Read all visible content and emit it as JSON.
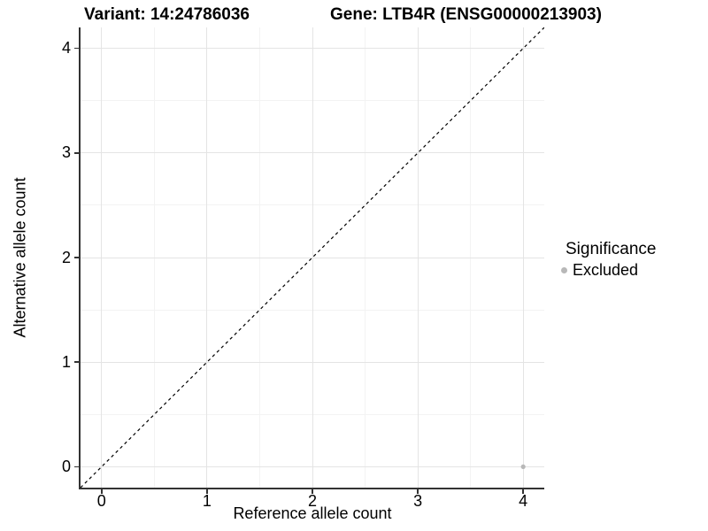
{
  "chart_data": {
    "type": "scatter",
    "title_variant": "Variant: 14:24786036",
    "title_gene": "Gene: LTB4R (ENSG00000213903)",
    "xlabel": "Reference allele count",
    "ylabel": "Alternative allele count",
    "xlim": [
      -0.2,
      4.2
    ],
    "ylim": [
      -0.2,
      4.2
    ],
    "x_ticks": [
      0,
      1,
      2,
      3,
      4
    ],
    "y_ticks": [
      0,
      1,
      2,
      3,
      4
    ],
    "x_minor": [
      0.5,
      1.5,
      2.5,
      3.5
    ],
    "y_minor": [
      0.5,
      1.5,
      2.5,
      3.5
    ],
    "grid": "major+minor",
    "identity_line": {
      "from": [
        -0.2,
        -0.2
      ],
      "to": [
        4.2,
        4.2
      ],
      "style": "dashed",
      "color": "#000000"
    },
    "points": [
      {
        "x": 4,
        "y": 0,
        "series": "Excluded"
      }
    ],
    "legend": {
      "title": "Significance",
      "position": "right",
      "entries": [
        {
          "label": "Excluded",
          "color": "#b8b8b8"
        }
      ]
    },
    "colors": {
      "grid_major": "#e4e4e4",
      "grid_minor": "#f3f3f3",
      "axis_line": "#333333",
      "text": "#000000",
      "background": "#ffffff"
    }
  }
}
